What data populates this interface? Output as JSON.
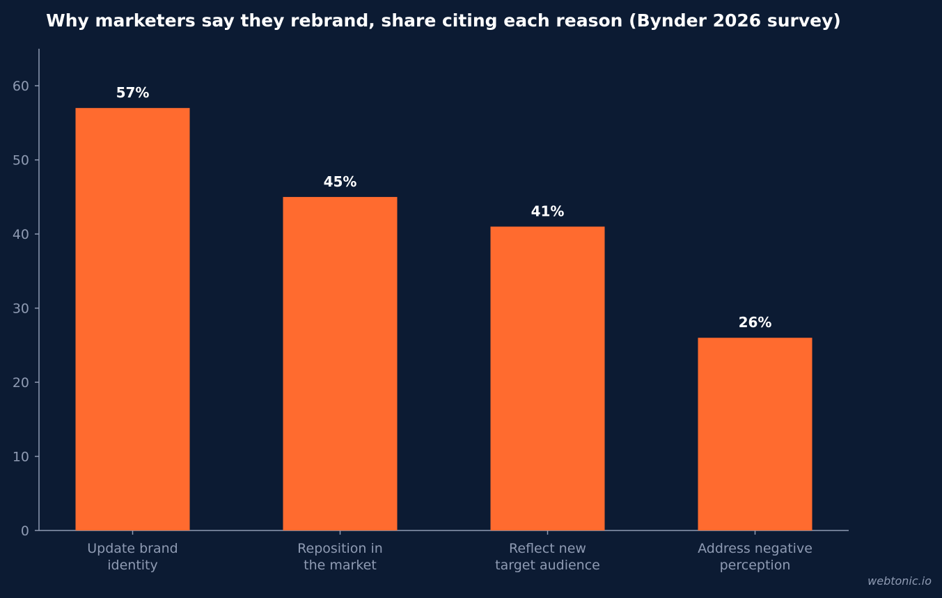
{
  "chart_data": {
    "type": "bar",
    "title": "Why marketers say they rebrand, share citing each reason (Bynder 2026 survey)",
    "xlabel": "",
    "ylabel": "",
    "categories": [
      [
        "Update brand",
        "identity"
      ],
      [
        "Reposition in",
        "the market"
      ],
      [
        "Reflect new",
        "target audience"
      ],
      [
        "Address negative",
        "perception"
      ]
    ],
    "values": [
      57,
      45,
      41,
      26
    ],
    "data_labels": [
      "57%",
      "45%",
      "41%",
      "26%"
    ],
    "ylim": [
      0,
      65
    ],
    "yticks": [
      0,
      10,
      20,
      30,
      40,
      50,
      60
    ],
    "ytick_labels": [
      "0",
      "10",
      "20",
      "30",
      "40",
      "50",
      "60"
    ],
    "grid": false,
    "legend": "none"
  },
  "colors": {
    "background": "#0c1b33",
    "bar": "#ff6b2f",
    "axis": "#8f9bb3",
    "text": "#ffffff",
    "tick_text": "#8f9bb3"
  },
  "watermark": "webtonic.io"
}
